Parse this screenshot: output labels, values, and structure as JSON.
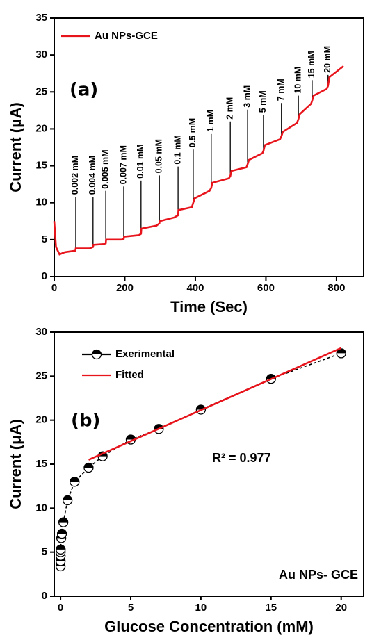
{
  "chart_data": [
    {
      "type": "line",
      "panel_label": "(a)",
      "x_label": "Time (Sec)",
      "y_label": "Current (μA)",
      "xlim": [
        0,
        877
      ],
      "xticks": [
        0,
        200,
        400,
        600,
        800
      ],
      "ylim": [
        0,
        35
      ],
      "yticks": [
        0,
        5,
        10,
        15,
        20,
        25,
        30,
        35
      ],
      "legend": "upper left",
      "series": [
        {
          "name": "Au NPs-GCE",
          "color": "#e8141c",
          "line_style": "solid",
          "marker": false,
          "x": [
            0,
            5,
            15,
            30,
            60,
            61,
            100,
            110,
            111,
            140,
            146,
            147,
            190,
            197,
            198,
            240,
            246,
            247,
            290,
            298,
            299,
            340,
            351,
            352,
            390,
            394,
            398,
            440,
            445,
            448,
            495,
            499,
            502,
            545,
            548,
            552,
            590,
            593,
            597,
            640,
            644,
            648,
            688,
            692,
            696,
            728,
            731,
            735,
            772,
            776,
            780,
            820
          ],
          "values": [
            7.5,
            4,
            3,
            3.3,
            3.5,
            3.8,
            3.8,
            4,
            4.3,
            4.4,
            4.5,
            5,
            5,
            5.1,
            5.4,
            5.6,
            5.8,
            6.5,
            6.9,
            7.2,
            7.5,
            8,
            8.3,
            9,
            9.4,
            10,
            10.6,
            11.6,
            12.0,
            12.7,
            13.3,
            13.6,
            14.3,
            14.8,
            15.2,
            15.8,
            16.7,
            17.0,
            17.8,
            18.6,
            19.0,
            19.6,
            20.8,
            21.3,
            22.0,
            23.4,
            23.8,
            24.5,
            25.4,
            25.8,
            27.0,
            28.5
          ]
        }
      ],
      "annotations": [
        {
          "text": "0.002 mM",
          "x": 61,
          "y": 10.8
        },
        {
          "text": "0.004 mM",
          "x": 110,
          "y": 10.8
        },
        {
          "text": "0.005 mM",
          "x": 146,
          "y": 11.6
        },
        {
          "text": "0.007 mM",
          "x": 197,
          "y": 12.2
        },
        {
          "text": "0.01 mM",
          "x": 246,
          "y": 13
        },
        {
          "text": "0.05 mM",
          "x": 298,
          "y": 13.7
        },
        {
          "text": "0.1 mM",
          "x": 351,
          "y": 14.9
        },
        {
          "text": "0.5 mM",
          "x": 394,
          "y": 17.2
        },
        {
          "text": "1 mM",
          "x": 445,
          "y": 19.3
        },
        {
          "text": "2 mM",
          "x": 499,
          "y": 21
        },
        {
          "text": "3 mM",
          "x": 548,
          "y": 22.6
        },
        {
          "text": "5 mM",
          "x": 593,
          "y": 21.9
        },
        {
          "text": "7 mM",
          "x": 644,
          "y": 23.5
        },
        {
          "text": "10 mM",
          "x": 692,
          "y": 24.5
        },
        {
          "text": "15 mM",
          "x": 731,
          "y": 26.6
        },
        {
          "text": "20 mM",
          "x": 776,
          "y": 27.3
        }
      ]
    },
    {
      "type": "scatter",
      "panel_label": "(b)",
      "x_label": "Glucose Concentration (mM)",
      "y_label": "Current (μA)",
      "xlim": [
        -0.45,
        21.6
      ],
      "xticks": [
        0,
        5,
        10,
        15,
        20
      ],
      "ylim": [
        0,
        30
      ],
      "yticks": [
        0,
        5,
        10,
        15,
        20,
        25,
        30
      ],
      "legend": "upper left",
      "series": [
        {
          "name": "Exerimental",
          "color": "#000000",
          "line_style": "dashed",
          "marker": true,
          "x": [
            0.002,
            0.004,
            0.005,
            0.007,
            0.01,
            0.05,
            0.1,
            0.2,
            0.5,
            1,
            2,
            3,
            5,
            7,
            10,
            15,
            20
          ],
          "values": [
            3.4,
            4.0,
            4.6,
            5.0,
            5.3,
            6.6,
            7.1,
            8.4,
            10.9,
            13.0,
            14.6,
            15.9,
            17.8,
            19.0,
            21.2,
            24.7,
            27.6
          ]
        },
        {
          "name": "Fitted",
          "color": "#e8141c",
          "line_style": "solid",
          "marker": false,
          "x": [
            2,
            20
          ],
          "values": [
            15.5,
            28.2
          ]
        }
      ],
      "annotations": [
        {
          "text": "R² = 0.977"
        },
        {
          "text": "Au NPs- GCE"
        }
      ]
    }
  ]
}
